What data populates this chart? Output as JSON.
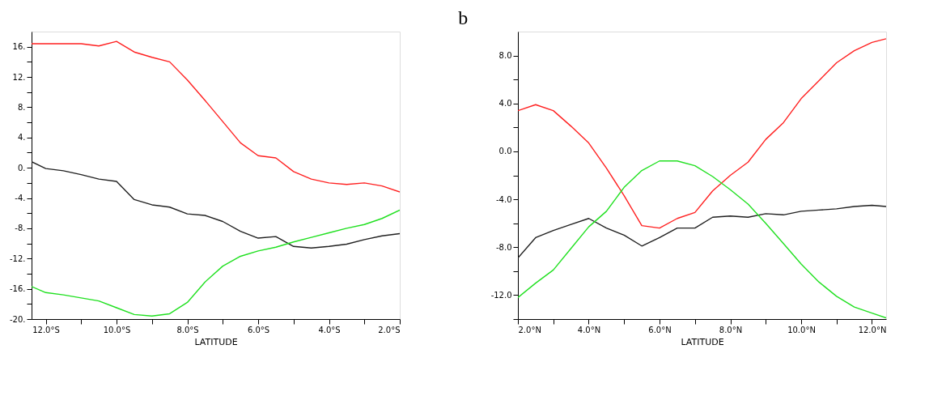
{
  "chart_data": [
    {
      "type": "line",
      "xlabel": "LATITUDE",
      "grid": false,
      "x": [
        -12.4,
        -12,
        -11.5,
        -11,
        -10.5,
        -10,
        -9.5,
        -9,
        -8.5,
        -8,
        -7.5,
        -7,
        -6.5,
        -6,
        -5.5,
        -5,
        -4.5,
        -4,
        -3.5,
        -3,
        -2.5,
        -2
      ],
      "xlim": [
        -12.4,
        -2
      ],
      "xticks": [
        {
          "value": -12,
          "label": "12.0°S"
        },
        {
          "value": -11,
          "label": null
        },
        {
          "value": -10,
          "label": "10.0°S"
        },
        {
          "value": -9,
          "label": null
        },
        {
          "value": -8,
          "label": "8.0°S"
        },
        {
          "value": -7,
          "label": null
        },
        {
          "value": -6,
          "label": "6.0°S"
        },
        {
          "value": -5,
          "label": null
        },
        {
          "value": -4,
          "label": "4.0°S"
        },
        {
          "value": -3,
          "label": null
        },
        {
          "value": -2,
          "label": "2.0°S"
        }
      ],
      "ylim": [
        -20,
        18
      ],
      "yticks": [
        {
          "value": -20,
          "label": "-20."
        },
        {
          "value": -18,
          "label": null
        },
        {
          "value": -16,
          "label": "-16."
        },
        {
          "value": -14,
          "label": null
        },
        {
          "value": -12,
          "label": "-12."
        },
        {
          "value": -10,
          "label": null
        },
        {
          "value": -8,
          "label": "-8."
        },
        {
          "value": -6,
          "label": null
        },
        {
          "value": -4,
          "label": "-4."
        },
        {
          "value": -2,
          "label": null
        },
        {
          "value": 0,
          "label": "0."
        },
        {
          "value": 2,
          "label": null
        },
        {
          "value": 4,
          "label": "4."
        },
        {
          "value": 6,
          "label": null
        },
        {
          "value": 8,
          "label": "8."
        },
        {
          "value": 10,
          "label": null
        },
        {
          "value": 12,
          "label": "12."
        },
        {
          "value": 14,
          "label": null
        },
        {
          "value": 16,
          "label": "16."
        }
      ],
      "series": [
        {
          "color": "#ff2020",
          "values": [
            16.4,
            16.4,
            16.4,
            16.4,
            16.1,
            16.7,
            15.3,
            14.6,
            14.0,
            11.6,
            8.9,
            6.1,
            3.3,
            1.6,
            1.3,
            -0.5,
            -1.5,
            -2.0,
            -2.2,
            -2.0,
            -2.4,
            -3.2
          ]
        },
        {
          "color": "#202020",
          "values": [
            0.8,
            -0.1,
            -0.4,
            -0.9,
            -1.5,
            -1.8,
            -4.2,
            -4.9,
            -5.2,
            -6.1,
            -6.3,
            -7.1,
            -8.4,
            -9.3,
            -9.1,
            -10.4,
            -10.6,
            -10.4,
            -10.1,
            -9.5,
            -9.0,
            -8.7
          ]
        },
        {
          "color": "#20e020",
          "values": [
            -15.7,
            -16.5,
            -16.8,
            -17.2,
            -17.6,
            -18.5,
            -19.4,
            -19.6,
            -19.3,
            -17.8,
            -15.1,
            -13.0,
            -11.7,
            -11.0,
            -10.5,
            -9.8,
            -9.2,
            -8.6,
            -8.0,
            -7.5,
            -6.7,
            -5.6
          ]
        }
      ]
    },
    {
      "type": "line",
      "title": "b",
      "xlabel": "LATITUDE",
      "grid": false,
      "x": [
        2,
        2.5,
        3,
        3.5,
        4,
        4.5,
        5,
        5.5,
        6,
        6.5,
        7,
        7.5,
        8,
        8.5,
        9,
        9.5,
        10,
        10.5,
        11,
        11.5,
        12,
        12.4
      ],
      "xlim": [
        2,
        12.4
      ],
      "xticks": [
        {
          "value": 2,
          "label": "2.0°N"
        },
        {
          "value": 3,
          "label": null
        },
        {
          "value": 4,
          "label": "4.0°N"
        },
        {
          "value": 5,
          "label": null
        },
        {
          "value": 6,
          "label": "6.0°N"
        },
        {
          "value": 7,
          "label": null
        },
        {
          "value": 8,
          "label": "8.0°N"
        },
        {
          "value": 9,
          "label": null
        },
        {
          "value": 10,
          "label": "10.0°N"
        },
        {
          "value": 11,
          "label": null
        },
        {
          "value": 12,
          "label": "12.0°N"
        }
      ],
      "ylim": [
        -14,
        10
      ],
      "yticks": [
        {
          "value": -14,
          "label": null
        },
        {
          "value": -12,
          "label": "-12.0"
        },
        {
          "value": -10,
          "label": null
        },
        {
          "value": -8,
          "label": "-8.0"
        },
        {
          "value": -6,
          "label": null
        },
        {
          "value": -4,
          "label": "-4.0"
        },
        {
          "value": -2,
          "label": null
        },
        {
          "value": 0,
          "label": "0.0"
        },
        {
          "value": 2,
          "label": null
        },
        {
          "value": 4,
          "label": "4.0"
        },
        {
          "value": 6,
          "label": null
        },
        {
          "value": 8,
          "label": "8.0"
        }
      ],
      "series": [
        {
          "color": "#ff2020",
          "values": [
            3.4,
            3.9,
            3.4,
            2.1,
            0.7,
            -1.4,
            -3.7,
            -6.2,
            -6.4,
            -5.6,
            -5.1,
            -3.3,
            -2.0,
            -0.9,
            1.0,
            2.4,
            4.4,
            5.9,
            7.4,
            8.4,
            9.1,
            9.4
          ]
        },
        {
          "color": "#202020",
          "values": [
            -8.9,
            -7.2,
            -6.6,
            -6.1,
            -5.6,
            -6.4,
            -7.0,
            -7.9,
            -7.2,
            -6.4,
            -6.4,
            -5.5,
            -5.4,
            -5.5,
            -5.2,
            -5.3,
            -5.0,
            -4.9,
            -4.8,
            -4.6,
            -4.5,
            -4.6
          ]
        },
        {
          "color": "#20e020",
          "values": [
            -12.2,
            -11.0,
            -9.9,
            -8.1,
            -6.3,
            -5.0,
            -3.0,
            -1.6,
            -0.8,
            -0.8,
            -1.2,
            -2.1,
            -3.2,
            -4.4,
            -6.0,
            -7.7,
            -9.4,
            -10.9,
            -12.1,
            -13.0,
            -13.5,
            -13.9
          ]
        }
      ]
    }
  ]
}
